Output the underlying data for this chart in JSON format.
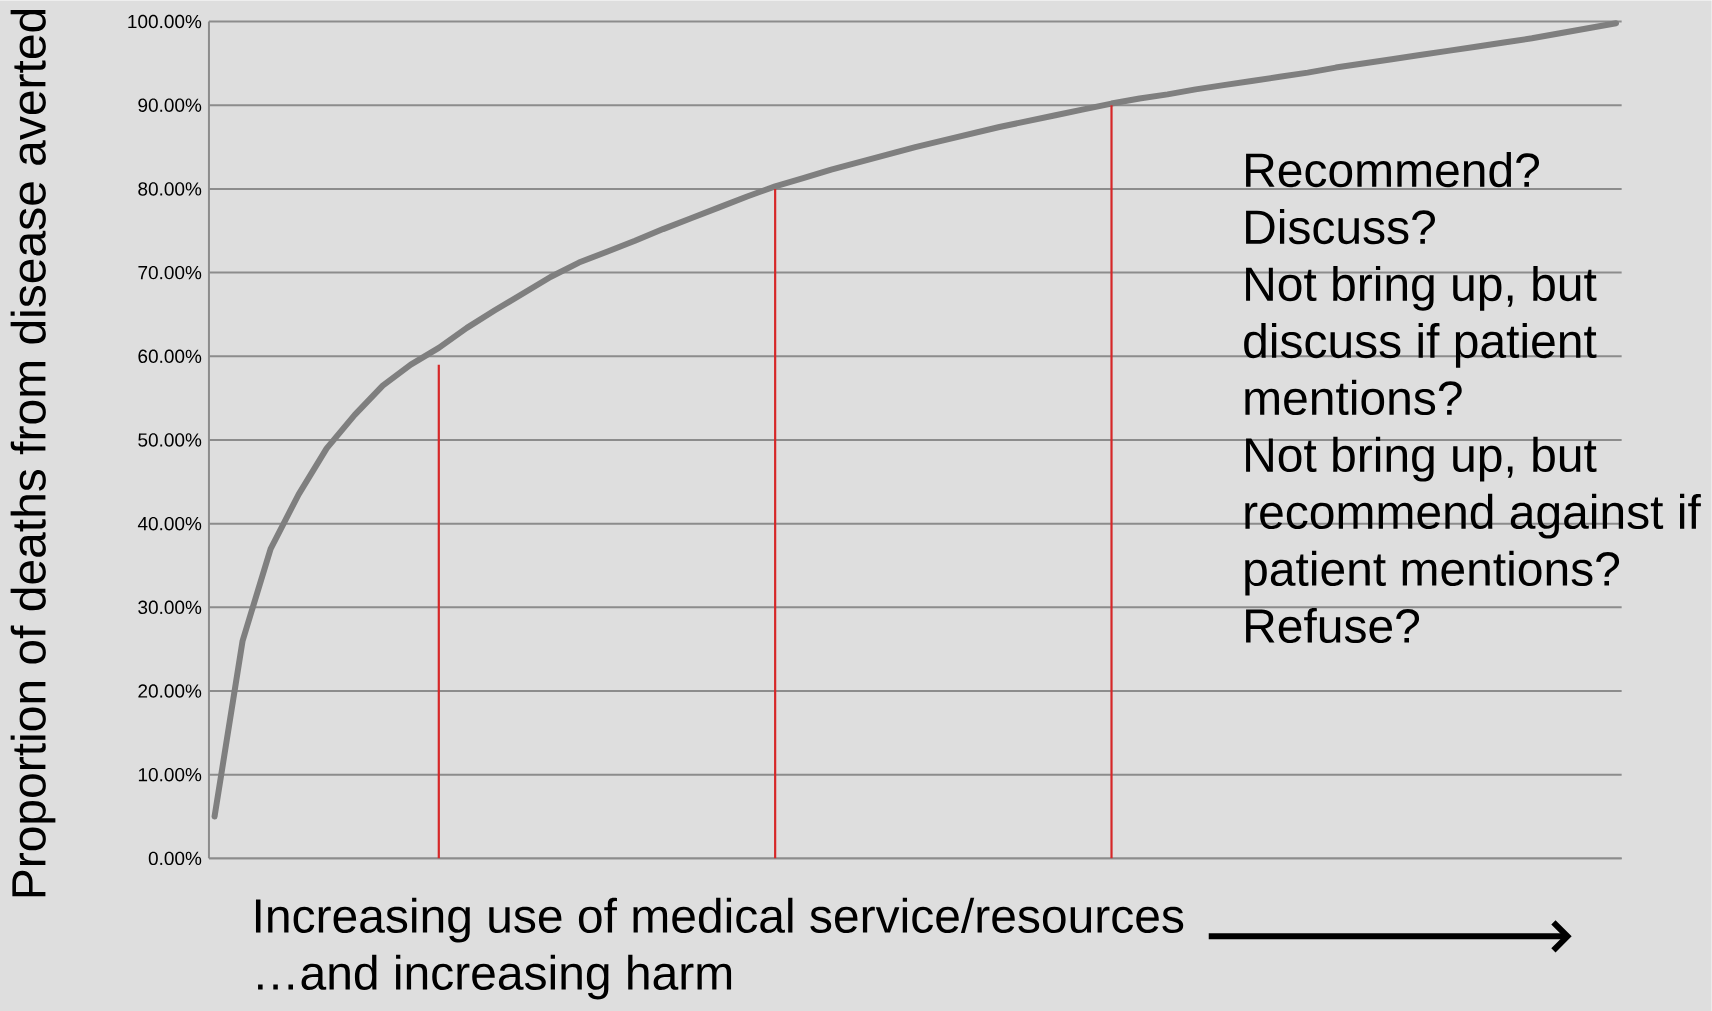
{
  "chart_data": {
    "type": "line",
    "ylabel": "Proportion of deaths from disease averted",
    "xlabel": "Increasing use of medical service/resources …and increasing harm",
    "annotations": [
      "Recommend?",
      "Discuss?",
      "Not bring up, but discuss if patient mentions?",
      "Not bring up, but recommend against if patient mentions?",
      "Refuse?"
    ],
    "categories": [
      null,
      null,
      null,
      null,
      null,
      null,
      null,
      null,
      null,
      null,
      null,
      null,
      null,
      null,
      null,
      null,
      null,
      null,
      null,
      null,
      null,
      null,
      null,
      null,
      null,
      null,
      null,
      null,
      null,
      null,
      null,
      null,
      null,
      null,
      null,
      null,
      null,
      null,
      null,
      null,
      null,
      null,
      null,
      null,
      null,
      null,
      null,
      null,
      null,
      null,
      null
    ],
    "series": [
      {
        "color": "#7f7f7f",
        "values": [
          5,
          26,
          37,
          43.5,
          49,
          53,
          56.5,
          59,
          61,
          63.4,
          65.5,
          67.5,
          69.5,
          71.2,
          72.5,
          73.8,
          75.2,
          76.5,
          77.8,
          79.1,
          80.3,
          81.3,
          82.3,
          83.2,
          84.1,
          85,
          85.8,
          86.6,
          87.4,
          88.1,
          88.8,
          89.5,
          90.2,
          90.8,
          91.3,
          91.9,
          92.4,
          92.9,
          93.4,
          93.9,
          94.5,
          95,
          95.5,
          96,
          96.5,
          97,
          97.5,
          98,
          98.6,
          99.2,
          99.8
        ]
      },
      {
        "type": "bar",
        "color": "#d62728",
        "values": [
          null,
          null,
          null,
          null,
          null,
          null,
          null,
          null,
          59,
          null,
          null,
          null,
          null,
          null,
          null,
          null,
          null,
          null,
          null,
          null,
          80,
          null,
          null,
          null,
          null,
          null,
          null,
          null,
          null,
          null,
          null,
          null,
          90,
          null,
          null,
          null,
          null,
          null,
          null,
          null,
          null,
          null,
          null,
          null,
          null,
          null,
          null,
          null,
          null,
          null,
          null
        ]
      }
    ],
    "ylim": [
      0,
      100
    ],
    "yticks": [
      {
        "value": 0,
        "label": "0.00%"
      },
      {
        "value": 10,
        "label": "10.00%"
      },
      {
        "value": 20,
        "label": "20.00%"
      },
      {
        "value": 30,
        "label": "30.00%"
      },
      {
        "value": 40,
        "label": "40.00%"
      },
      {
        "value": 50,
        "label": "50.00%"
      },
      {
        "value": 60,
        "label": "60.00%"
      },
      {
        "value": 70,
        "label": "70.00%"
      },
      {
        "value": 80,
        "label": "80.00%"
      },
      {
        "value": 90,
        "label": "90.00%"
      },
      {
        "value": 100,
        "label": "100.00%"
      }
    ],
    "grid": "y",
    "tick_labels": "y"
  }
}
